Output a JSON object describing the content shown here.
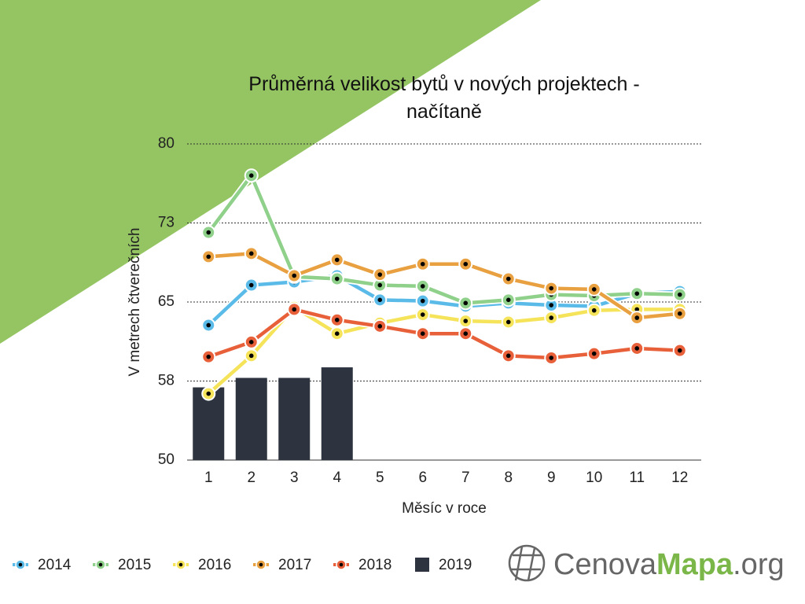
{
  "chart_data": {
    "type": "line",
    "title": "Průměrná velikost bytů v nových projektech - načítaně",
    "x_label": "Měsíc v roce",
    "y_label": "V metrech čtverečních",
    "categories": [
      "1",
      "2",
      "3",
      "4",
      "5",
      "6",
      "7",
      "8",
      "9",
      "10",
      "11",
      "12"
    ],
    "ylim": [
      50,
      80
    ],
    "yticks": [
      50,
      {
        "value": 57.5,
        "label": "58"
      },
      65,
      {
        "value": 72.5,
        "label": "73"
      },
      80
    ],
    "grid": true,
    "legend": "bottom",
    "series": [
      {
        "name": "2019",
        "type": "bar",
        "color": "#2d333f",
        "values": [
          56.9,
          57.8,
          57.8,
          58.8,
          null,
          null,
          null,
          null,
          null,
          null,
          null,
          null
        ]
      },
      {
        "name": "2014",
        "color": "#5bbbe8",
        "values": [
          62.8,
          66.6,
          66.9,
          67.5,
          65.2,
          65.1,
          64.6,
          64.9,
          64.7,
          64.6,
          65.8,
          66.0
        ]
      },
      {
        "name": "2015",
        "color": "#8fd08a",
        "values": [
          71.6,
          77.0,
          67.4,
          67.2,
          66.6,
          66.5,
          64.9,
          65.2,
          65.7,
          65.6,
          65.8,
          65.7
        ]
      },
      {
        "name": "2016",
        "color": "#f5e35a",
        "values": [
          56.3,
          59.9,
          64.5,
          62.0,
          63.0,
          63.8,
          63.2,
          63.1,
          63.5,
          64.2,
          64.3,
          64.3
        ]
      },
      {
        "name": "2017",
        "color": "#e8a040",
        "values": [
          69.3,
          69.6,
          67.5,
          69.0,
          67.6,
          68.6,
          68.6,
          67.2,
          66.3,
          66.2,
          63.5,
          63.9
        ]
      },
      {
        "name": "2018",
        "color": "#e8603a",
        "values": [
          59.8,
          61.2,
          64.3,
          63.3,
          62.7,
          62.0,
          62.0,
          59.9,
          59.7,
          60.1,
          60.6,
          60.4
        ]
      }
    ]
  },
  "logo": {
    "parts": [
      "Cenova",
      "Mapa",
      ".org"
    ]
  }
}
